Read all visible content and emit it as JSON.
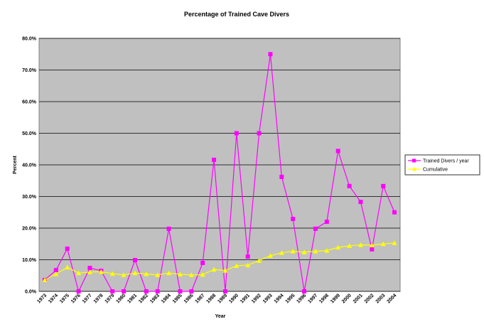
{
  "chart_data": {
    "type": "line",
    "title": "Percentage of Trained Cave Divers",
    "x_label": "Year",
    "y_label": "Percent",
    "categories": [
      "1973",
      "1974",
      "1975",
      "1976",
      "1977",
      "1978",
      "1979",
      "1980",
      "1981",
      "1982",
      "1983",
      "1984",
      "1985",
      "1986",
      "1987",
      "1988",
      "1989",
      "1990",
      "1991",
      "1992",
      "1993",
      "1994",
      "1995",
      "1996",
      "1997",
      "1998",
      "1999",
      "2000",
      "2001",
      "2002",
      "2003",
      "2004"
    ],
    "series": [
      {
        "name": "Trained Divers / year",
        "color": "#ff00ff",
        "marker": "square",
        "values": [
          3.6,
          6.7,
          13.5,
          0,
          7.4,
          6.5,
          0,
          0,
          9.9,
          0,
          0,
          19.8,
          0,
          0,
          9.0,
          41.6,
          0,
          50.0,
          11.0,
          50.0,
          75.0,
          36.2,
          22.9,
          0,
          19.8,
          22.0,
          44.4,
          33.3,
          28.3,
          13.3,
          33.3,
          25.0
        ]
      },
      {
        "name": "Cumulative",
        "color": "#ffff00",
        "marker": "triangle",
        "values": [
          3.6,
          5.5,
          7.6,
          5.8,
          6.1,
          6.2,
          5.6,
          5.2,
          5.8,
          5.5,
          5.2,
          5.8,
          5.4,
          5.2,
          5.3,
          6.9,
          6.6,
          8.1,
          8.3,
          9.7,
          11.3,
          12.2,
          12.7,
          12.4,
          12.7,
          12.9,
          13.9,
          14.4,
          14.7,
          14.6,
          15.0,
          15.3
        ]
      }
    ],
    "ylim": [
      0,
      80
    ],
    "yticks": [
      {
        "value": 0,
        "label": "0.0%"
      },
      {
        "value": 10,
        "label": "10.0%"
      },
      {
        "value": 20,
        "label": "20.0%"
      },
      {
        "value": 30,
        "label": "30.0%"
      },
      {
        "value": 40,
        "label": "40.0%"
      },
      {
        "value": 50,
        "label": "50.0%"
      },
      {
        "value": 60,
        "label": "60.0%"
      },
      {
        "value": 70,
        "label": "70.0%"
      },
      {
        "value": 80,
        "label": "80.0%"
      }
    ],
    "grid": true,
    "legend": "right"
  }
}
